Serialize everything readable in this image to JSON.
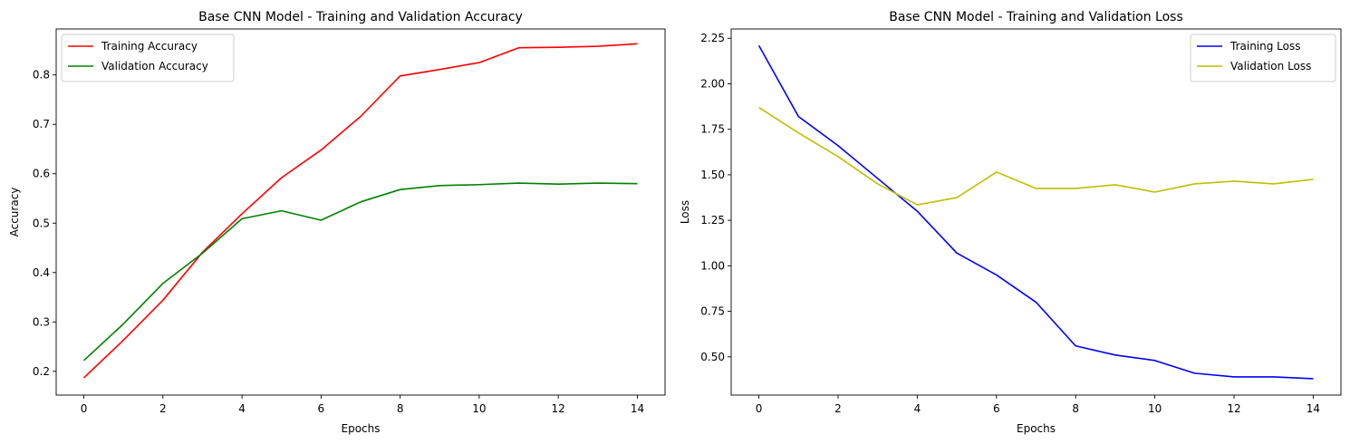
{
  "chart_data": [
    {
      "type": "line",
      "title": "Base CNN Model - Training and Validation Accuracy",
      "xlabel": "Epochs",
      "ylabel": "Accuracy",
      "xlim": [
        -0.7,
        14.7
      ],
      "ylim": [
        0.152,
        0.893
      ],
      "xticks": [
        0,
        2,
        4,
        6,
        8,
        10,
        12,
        14
      ],
      "yticks": [
        0.2,
        0.3,
        0.4,
        0.5,
        0.6,
        0.7,
        0.8
      ],
      "ytick_labels": [
        "0.2",
        "0.3",
        "0.4",
        "0.5",
        "0.6",
        "0.7",
        "0.8"
      ],
      "legend_position": "upper-left",
      "grid": false,
      "x": [
        0,
        1,
        2,
        3,
        4,
        5,
        6,
        7,
        8,
        9,
        10,
        11,
        12,
        13,
        14
      ],
      "series": [
        {
          "name": "Training Accuracy",
          "color": "#ff0000",
          "values": [
            0.187,
            0.263,
            0.344,
            0.441,
            0.519,
            0.592,
            0.648,
            0.716,
            0.798,
            0.811,
            0.825,
            0.855,
            0.856,
            0.858,
            0.863
          ]
        },
        {
          "name": "Validation Accuracy",
          "color": "#008000",
          "values": [
            0.222,
            0.296,
            0.378,
            0.439,
            0.509,
            0.525,
            0.506,
            0.543,
            0.568,
            0.576,
            0.578,
            0.581,
            0.579,
            0.581,
            0.58
          ]
        }
      ]
    },
    {
      "type": "line",
      "title": "Base CNN Model - Training and Validation Loss",
      "xlabel": "Epochs",
      "ylabel": "Loss",
      "xlim": [
        -0.7,
        14.7
      ],
      "ylim": [
        0.29,
        2.301
      ],
      "xticks": [
        0,
        2,
        4,
        6,
        8,
        10,
        12,
        14
      ],
      "yticks": [
        0.5,
        0.75,
        1.0,
        1.25,
        1.5,
        1.75,
        2.0,
        2.25
      ],
      "ytick_labels": [
        "0.50",
        "0.75",
        "1.00",
        "1.25",
        "1.50",
        "1.75",
        "2.00",
        "2.25"
      ],
      "legend_position": "upper-right",
      "grid": false,
      "x": [
        0,
        1,
        2,
        3,
        4,
        5,
        6,
        7,
        8,
        9,
        10,
        11,
        12,
        13,
        14
      ],
      "series": [
        {
          "name": "Training Loss",
          "color": "#0000ff",
          "values": [
            2.21,
            1.82,
            1.66,
            1.48,
            1.3,
            1.07,
            0.95,
            0.8,
            0.56,
            0.51,
            0.48,
            0.41,
            0.39,
            0.39,
            0.38
          ]
        },
        {
          "name": "Validation Loss",
          "color": "#bfbf00",
          "values": [
            1.87,
            1.73,
            1.6,
            1.45,
            1.335,
            1.375,
            1.515,
            1.425,
            1.425,
            1.445,
            1.405,
            1.45,
            1.465,
            1.45,
            1.475
          ]
        }
      ]
    }
  ]
}
